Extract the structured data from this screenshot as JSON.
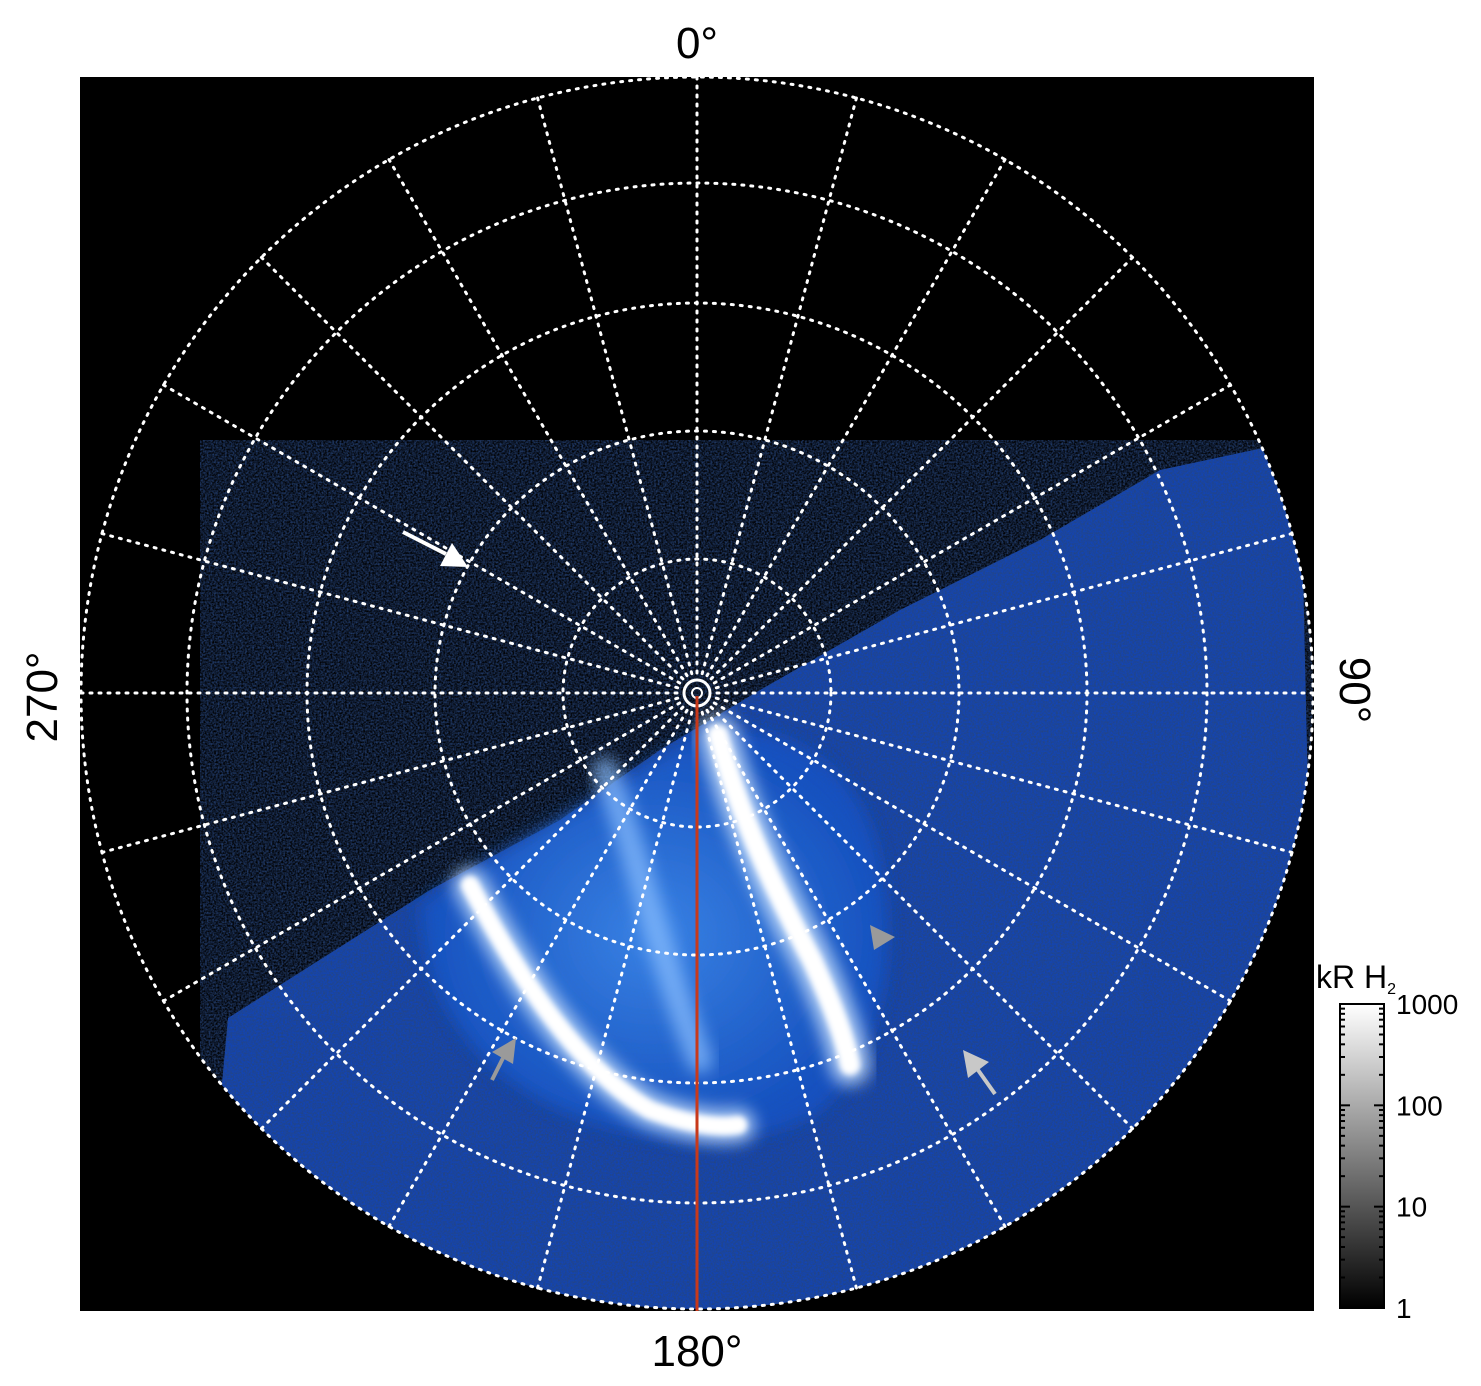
{
  "figure": {
    "labels": {
      "top": "0°",
      "right": "90°",
      "bottom": "180°",
      "left": "270°"
    },
    "colorbar": {
      "title": "kR H",
      "title_sub": "2",
      "ticks": [
        "1000",
        "100",
        "10",
        "1"
      ],
      "tick_values": [
        1000,
        100,
        10,
        1
      ],
      "scale": "log"
    },
    "colors": {
      "background": "#000000",
      "grid": "#ffffff",
      "meridian_line": "#c8391a",
      "aurora_low": "#0a2a88",
      "aurora_mid": "#1f6fe0",
      "aurora_high": "#ffffff",
      "arrow_white": "#ffffff",
      "arrow_grey": "#9a9a9a"
    },
    "grid": {
      "longitude_step_deg": 15,
      "ring_count": 5
    }
  }
}
